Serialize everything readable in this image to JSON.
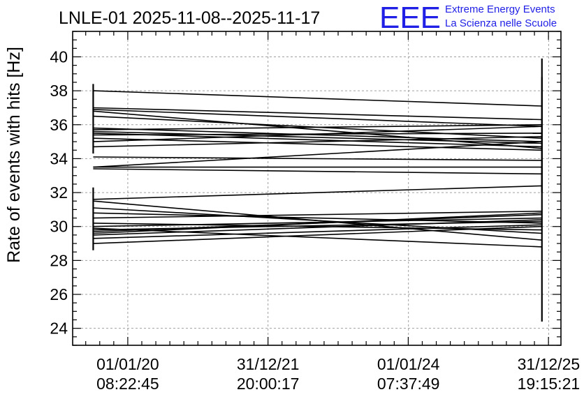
{
  "header": {
    "title": "LNLE-01 2025-11-08--2025-11-17",
    "logo": {
      "letters": "EEE",
      "line1": "Extreme Energy Events",
      "line2": "La Scienza nelle Scuole",
      "color": "#1f1fe6"
    }
  },
  "chart_data": {
    "type": "line",
    "title": "LNLE-01 2025-11-08--2025-11-17",
    "ylabel": "Rate of events with hits [Hz]",
    "xlabel": "",
    "ylim": [
      23,
      41.5
    ],
    "yticks": [
      24,
      26,
      28,
      30,
      32,
      34,
      36,
      38,
      40
    ],
    "x_axis": {
      "type": "time",
      "range": [
        "2019-03-20",
        "2026-03-05"
      ],
      "ticks": [
        {
          "date": "2020-01-01",
          "line1": "01/01/20",
          "line2": "08:22:45"
        },
        {
          "date": "2021-12-31",
          "line1": "31/12/21",
          "line2": "20:00:17"
        },
        {
          "date": "2024-01-01",
          "line1": "01/01/24",
          "line2": "07:37:49"
        },
        {
          "date": "2025-12-31",
          "line1": "31/12/25",
          "line2": "19:15:21"
        }
      ]
    },
    "grid": true,
    "x": [
      "2019-07-05",
      "2025-11-26"
    ],
    "series": [
      {
        "values": [
          38.0,
          37.1
        ]
      },
      {
        "values": [
          37.0,
          36.3
        ]
      },
      {
        "values": [
          36.9,
          35.9
        ]
      },
      {
        "values": [
          36.8,
          34.6
        ]
      },
      {
        "values": [
          36.5,
          35.2
        ]
      },
      {
        "values": [
          35.8,
          35.0
        ]
      },
      {
        "values": [
          35.7,
          36.0
        ]
      },
      {
        "values": [
          35.6,
          34.9
        ]
      },
      {
        "values": [
          35.5,
          34.7
        ]
      },
      {
        "values": [
          35.4,
          35.5
        ]
      },
      {
        "values": [
          35.2,
          34.5
        ]
      },
      {
        "values": [
          35.0,
          35.9
        ]
      },
      {
        "values": [
          34.7,
          35.3
        ]
      },
      {
        "values": [
          34.1,
          33.9
        ]
      },
      {
        "values": [
          33.5,
          35.0
        ]
      },
      {
        "values": [
          33.5,
          33.5
        ]
      },
      {
        "values": [
          33.4,
          33.1
        ]
      },
      {
        "values": [
          31.6,
          32.4
        ]
      },
      {
        "values": [
          31.5,
          29.2
        ]
      },
      {
        "values": [
          31.1,
          29.6
        ]
      },
      {
        "values": [
          30.8,
          30.2
        ]
      },
      {
        "values": [
          30.5,
          30.9
        ]
      },
      {
        "values": [
          30.2,
          29.8
        ]
      },
      {
        "values": [
          30.0,
          30.5
        ]
      },
      {
        "values": [
          29.9,
          28.8
        ]
      },
      {
        "values": [
          29.8,
          30.3
        ]
      },
      {
        "values": [
          29.7,
          30.7
        ]
      },
      {
        "values": [
          29.6,
          30.8
        ]
      },
      {
        "values": [
          29.5,
          30.4
        ]
      },
      {
        "values": [
          29.3,
          30.1
        ]
      },
      {
        "values": [
          29.0,
          30.0
        ]
      }
    ],
    "error_bars": [
      {
        "x": "2019-07-05",
        "low": 34.3,
        "high": 38.4
      },
      {
        "x": "2019-07-05",
        "low": 28.6,
        "high": 32.3
      },
      {
        "x": "2025-11-26",
        "low": 24.4,
        "high": 39.9
      },
      {
        "x": "2025-11-26",
        "low": 32.0,
        "high": 38.8
      }
    ]
  }
}
